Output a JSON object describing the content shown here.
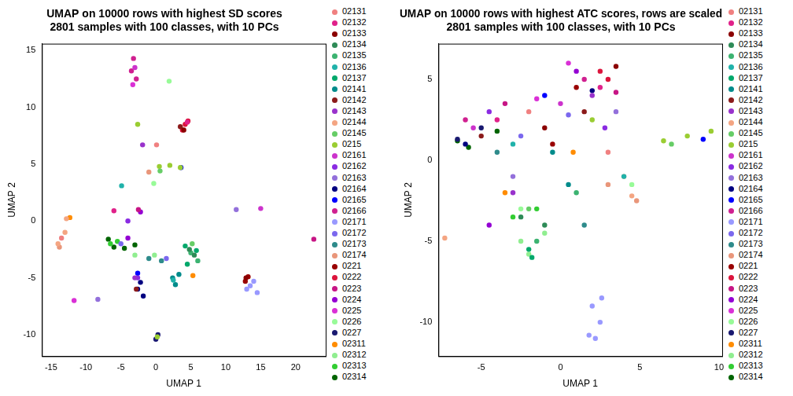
{
  "chart_data": [
    {
      "type": "scatter",
      "title": [
        "UMAP on 10000 rows with highest SD scores",
        "2801 samples with 100 classes, with 10 PCs"
      ],
      "x_label": "UMAP 1",
      "y_label": "UMAP 2",
      "xlim": [
        -16.3,
        24.3
      ],
      "ylim": [
        -11.9,
        15.6
      ],
      "xticks": [
        -15,
        -10,
        -5,
        0,
        5,
        10,
        15,
        20
      ],
      "yticks": [
        -10,
        -5,
        0,
        5,
        10,
        15
      ],
      "grid": false,
      "legend": "right",
      "marker": "circle",
      "series": [
        {
          "name": "02131",
          "color": "#F08080",
          "x": [
            0.1,
            -13.5
          ],
          "y": [
            6.7,
            -1.5
          ]
        },
        {
          "name": "02132",
          "color": "#E0218A",
          "x": [
            -6,
            4.5
          ],
          "y": [
            0.9,
            8.7
          ]
        },
        {
          "name": "02133",
          "color": "#8B0000",
          "x": [
            12.9,
            4
          ],
          "y": [
            -5,
            8
          ]
        },
        {
          "name": "02134",
          "color": "#2E8B57",
          "x": [
            4.8,
            5.5
          ],
          "y": [
            -2.5,
            -3
          ]
        },
        {
          "name": "02135",
          "color": "#3CB371",
          "x": [
            5,
            6
          ],
          "y": [
            -2.8,
            -3.5
          ]
        },
        {
          "name": "02136",
          "color": "#20B2AA",
          "x": [
            -4.9,
            2.5
          ],
          "y": [
            3.1,
            -5.2
          ]
        },
        {
          "name": "02137",
          "color": "#00A86B",
          "x": [
            4.2,
            5.8,
            4.5
          ],
          "y": [
            -2.2,
            -2.6,
            -3.8
          ]
        },
        {
          "name": "02141",
          "color": "#008B8B",
          "x": [
            2.4,
            2.8,
            3.3
          ],
          "y": [
            -5,
            -5.6,
            -4.7
          ]
        },
        {
          "name": "02142",
          "color": "#8B1A1A",
          "x": [
            3.5,
            -2.8
          ],
          "y": [
            8.3,
            -6
          ]
        },
        {
          "name": "02143",
          "color": "#9932CC",
          "x": [
            -1.9,
            -3
          ],
          "y": [
            6.7,
            -5
          ]
        },
        {
          "name": "02144",
          "color": "#F4A582",
          "x": [
            -14,
            -13,
            -12.8
          ],
          "y": [
            -2,
            -1,
            0.2
          ]
        },
        {
          "name": "02145",
          "color": "#66CD66",
          "x": [
            5.2,
            0.6
          ],
          "y": [
            -2,
            4.4
          ]
        },
        {
          "name": "0215",
          "color": "#9ACD32",
          "x": [
            0.5,
            2,
            3.5,
            -2.6,
            0.2
          ],
          "y": [
            4.8,
            4.9,
            4.7,
            8.5,
            -10.2
          ]
        },
        {
          "name": "02161",
          "color": "#CC33CC",
          "x": [
            15,
            -3
          ],
          "y": [
            1.1,
            13.5
          ]
        },
        {
          "name": "02162",
          "color": "#8A2BE2",
          "x": [
            -2.6,
            -4
          ],
          "y": [
            -5,
            0
          ]
        },
        {
          "name": "02163",
          "color": "#9370DB",
          "x": [
            -8.3,
            11.5
          ],
          "y": [
            -6.9,
            1
          ]
        },
        {
          "name": "02164",
          "color": "#000080",
          "x": [
            -2.6,
            -1.8,
            -2.2
          ],
          "y": [
            -6,
            -6.6,
            -5.4
          ]
        },
        {
          "name": "02165",
          "color": "#0000FF",
          "x": [
            -2.6,
            3.6
          ],
          "y": [
            -4.6,
            4.7
          ]
        },
        {
          "name": "02166",
          "color": "#D02090",
          "x": [
            -3.2,
            -2.8,
            -3.5
          ],
          "y": [
            14.3,
            12.5,
            13.2
          ]
        },
        {
          "name": "02171",
          "color": "#9999FF",
          "x": [
            13,
            14,
            14.5,
            13.5
          ],
          "y": [
            -6,
            -5.3,
            -6.3,
            -5.7
          ]
        },
        {
          "name": "02172",
          "color": "#7B68EE",
          "x": [
            -5,
            1.5
          ],
          "y": [
            -2,
            -3.3
          ]
        },
        {
          "name": "02173",
          "color": "#2E8B8B",
          "x": [
            -1,
            0.8
          ],
          "y": [
            -3.3,
            -3.5
          ]
        },
        {
          "name": "02174",
          "color": "#E9967A",
          "x": [
            -13.8,
            -1
          ],
          "y": [
            -2.3,
            4.3
          ]
        },
        {
          "name": "0221",
          "color": "#990000",
          "x": [
            12.8,
            13.2
          ],
          "y": [
            -5.3,
            -4.9
          ]
        },
        {
          "name": "0222",
          "color": "#DC143C",
          "x": [
            4.2,
            3.8,
            4.6
          ],
          "y": [
            8.5,
            8,
            8.8
          ]
        },
        {
          "name": "0223",
          "color": "#C71585",
          "x": [
            22.6,
            -2.5
          ],
          "y": [
            -1.6,
            1
          ]
        },
        {
          "name": "0224",
          "color": "#9400D3",
          "x": [
            -4,
            -2.2
          ],
          "y": [
            -1.5,
            0.8
          ]
        },
        {
          "name": "0225",
          "color": "#DA30D6",
          "x": [
            -11.7,
            -3.3
          ],
          "y": [
            -7,
            12
          ]
        },
        {
          "name": "0226",
          "color": "#98FB98",
          "x": [
            1.9,
            -0.3
          ],
          "y": [
            12.3,
            3.3
          ]
        },
        {
          "name": "0227",
          "color": "#191970",
          "x": [
            0,
            0.3
          ],
          "y": [
            -10.4,
            -10
          ]
        },
        {
          "name": "02311",
          "color": "#FF8C00",
          "x": [
            5.3,
            -12.3
          ],
          "y": [
            -4.8,
            0.3
          ]
        },
        {
          "name": "02312",
          "color": "#90EE90",
          "x": [
            -0.2,
            -3
          ],
          "y": [
            -3,
            -3
          ]
        },
        {
          "name": "02313",
          "color": "#32CD32",
          "x": [
            -6.5,
            -5.5
          ],
          "y": [
            -2,
            -1.8
          ]
        },
        {
          "name": "02314",
          "color": "#006400",
          "x": [
            -6,
            -4.5,
            -3,
            -6.8
          ],
          "y": [
            -2.3,
            -2.4,
            -2.1,
            -1.6
          ]
        }
      ]
    },
    {
      "type": "scatter",
      "title": [
        "UMAP on 10000 rows with highest ATC scores, rows are scaled",
        "2801 samples with 100 classes, with 10 PCs"
      ],
      "x_label": "UMAP 1",
      "y_label": "UMAP 2",
      "xlim": [
        -7.7,
        10.2
      ],
      "ylim": [
        -12.1,
        7.2
      ],
      "xticks": [
        -5,
        0,
        5,
        10
      ],
      "yticks": [
        -10,
        -5,
        0,
        5
      ],
      "grid": false,
      "legend": "right",
      "marker": "circle",
      "series": [
        {
          "name": "02131",
          "color": "#F08080",
          "x": [
            -2,
            3
          ],
          "y": [
            3,
            0.5
          ]
        },
        {
          "name": "02132",
          "color": "#E0218A",
          "x": [
            -4,
            2.5
          ],
          "y": [
            2.5,
            4.5
          ]
        },
        {
          "name": "02133",
          "color": "#8B0000",
          "x": [
            -1,
            3.5
          ],
          "y": [
            2,
            5.8
          ]
        },
        {
          "name": "02134",
          "color": "#2E8B57",
          "x": [
            -2.5,
            -1
          ],
          "y": [
            -3.5,
            -4
          ]
        },
        {
          "name": "02135",
          "color": "#3CB371",
          "x": [
            -1.5,
            1
          ],
          "y": [
            -5,
            -2
          ]
        },
        {
          "name": "02136",
          "color": "#20B2AA",
          "x": [
            -3,
            4
          ],
          "y": [
            1,
            -1
          ]
        },
        {
          "name": "02137",
          "color": "#00A86B",
          "x": [
            -2,
            -1.8
          ],
          "y": [
            -5.5,
            -6
          ]
        },
        {
          "name": "02141",
          "color": "#008B8B",
          "x": [
            0.5,
            -0.5
          ],
          "y": [
            -1.5,
            0.5
          ]
        },
        {
          "name": "02142",
          "color": "#8B1A1A",
          "x": [
            1.5,
            -5
          ],
          "y": [
            3,
            1.5
          ]
        },
        {
          "name": "02143",
          "color": "#9932CC",
          "x": [
            2,
            -3
          ],
          "y": [
            4,
            -2
          ]
        },
        {
          "name": "02144",
          "color": "#F4A582",
          "x": [
            4,
            4.5,
            -7.3
          ],
          "y": [
            -1,
            -2.2,
            -4.8
          ]
        },
        {
          "name": "02145",
          "color": "#66CD66",
          "x": [
            -2,
            7
          ],
          "y": [
            -3,
            1
          ]
        },
        {
          "name": "0215",
          "color": "#9ACD32",
          "x": [
            6.5,
            8,
            9.5,
            2
          ],
          "y": [
            1.2,
            1.5,
            1.8,
            2.5
          ]
        },
        {
          "name": "02161",
          "color": "#CC33CC",
          "x": [
            -5.5,
            0
          ],
          "y": [
            2,
            3.5
          ]
        },
        {
          "name": "02162",
          "color": "#8A2BE2",
          "x": [
            2.8,
            -4.5
          ],
          "y": [
            2,
            3
          ]
        },
        {
          "name": "02163",
          "color": "#9370DB",
          "x": [
            3.5,
            -3
          ],
          "y": [
            3,
            -1
          ]
        },
        {
          "name": "02164",
          "color": "#000080",
          "x": [
            -6,
            2
          ],
          "y": [
            1,
            4.3
          ]
        },
        {
          "name": "02165",
          "color": "#0000FF",
          "x": [
            9,
            -1
          ],
          "y": [
            1.3,
            4
          ]
        },
        {
          "name": "02166",
          "color": "#D02090",
          "x": [
            1.5,
            -6
          ],
          "y": [
            5,
            2.5
          ]
        },
        {
          "name": "02171",
          "color": "#9999FF",
          "x": [
            2,
            2.5,
            1.8,
            2.6,
            2.2
          ],
          "y": [
            -9,
            -10,
            -10.8,
            -8.5,
            -11
          ]
        },
        {
          "name": "02172",
          "color": "#7B68EE",
          "x": [
            -2.5,
            0.5
          ],
          "y": [
            1.5,
            2.8
          ]
        },
        {
          "name": "02173",
          "color": "#2E8B8B",
          "x": [
            -4,
            1.5
          ],
          "y": [
            0.5,
            -4
          ]
        },
        {
          "name": "02174",
          "color": "#E9967A",
          "x": [
            4.8,
            3
          ],
          "y": [
            -2.5,
            -1.5
          ]
        },
        {
          "name": "0221",
          "color": "#990000",
          "x": [
            -0.5,
            1
          ],
          "y": [
            1,
            4.5
          ]
        },
        {
          "name": "0222",
          "color": "#DC143C",
          "x": [
            2.5,
            3
          ],
          "y": [
            5.5,
            5
          ]
        },
        {
          "name": "0223",
          "color": "#C71585",
          "x": [
            3.5,
            -3.5
          ],
          "y": [
            4.2,
            3.5
          ]
        },
        {
          "name": "0224",
          "color": "#9400D3",
          "x": [
            -4.5,
            1
          ],
          "y": [
            -4,
            5.5
          ]
        },
        {
          "name": "0225",
          "color": "#DA30D6",
          "x": [
            -1.5,
            0.5
          ],
          "y": [
            3.8,
            6
          ]
        },
        {
          "name": "0226",
          "color": "#98FB98",
          "x": [
            -2.5,
            4.5
          ],
          "y": [
            -3,
            -1.5
          ]
        },
        {
          "name": "0227",
          "color": "#191970",
          "x": [
            -6.5,
            -5
          ],
          "y": [
            1.3,
            2
          ]
        },
        {
          "name": "02311",
          "color": "#FF8C00",
          "x": [
            -3.5,
            0.8
          ],
          "y": [
            -2,
            0.5
          ]
        },
        {
          "name": "02312",
          "color": "#90EE90",
          "x": [
            -2,
            -2.5,
            -1
          ],
          "y": [
            -5.8,
            -5,
            -4.5
          ]
        },
        {
          "name": "02313",
          "color": "#32CD32",
          "x": [
            -3,
            -1.5
          ],
          "y": [
            -3.5,
            -3
          ]
        },
        {
          "name": "02314",
          "color": "#006400",
          "x": [
            -6.5,
            -5.8,
            -4
          ],
          "y": [
            1.2,
            0.8,
            1.8
          ]
        }
      ]
    }
  ]
}
